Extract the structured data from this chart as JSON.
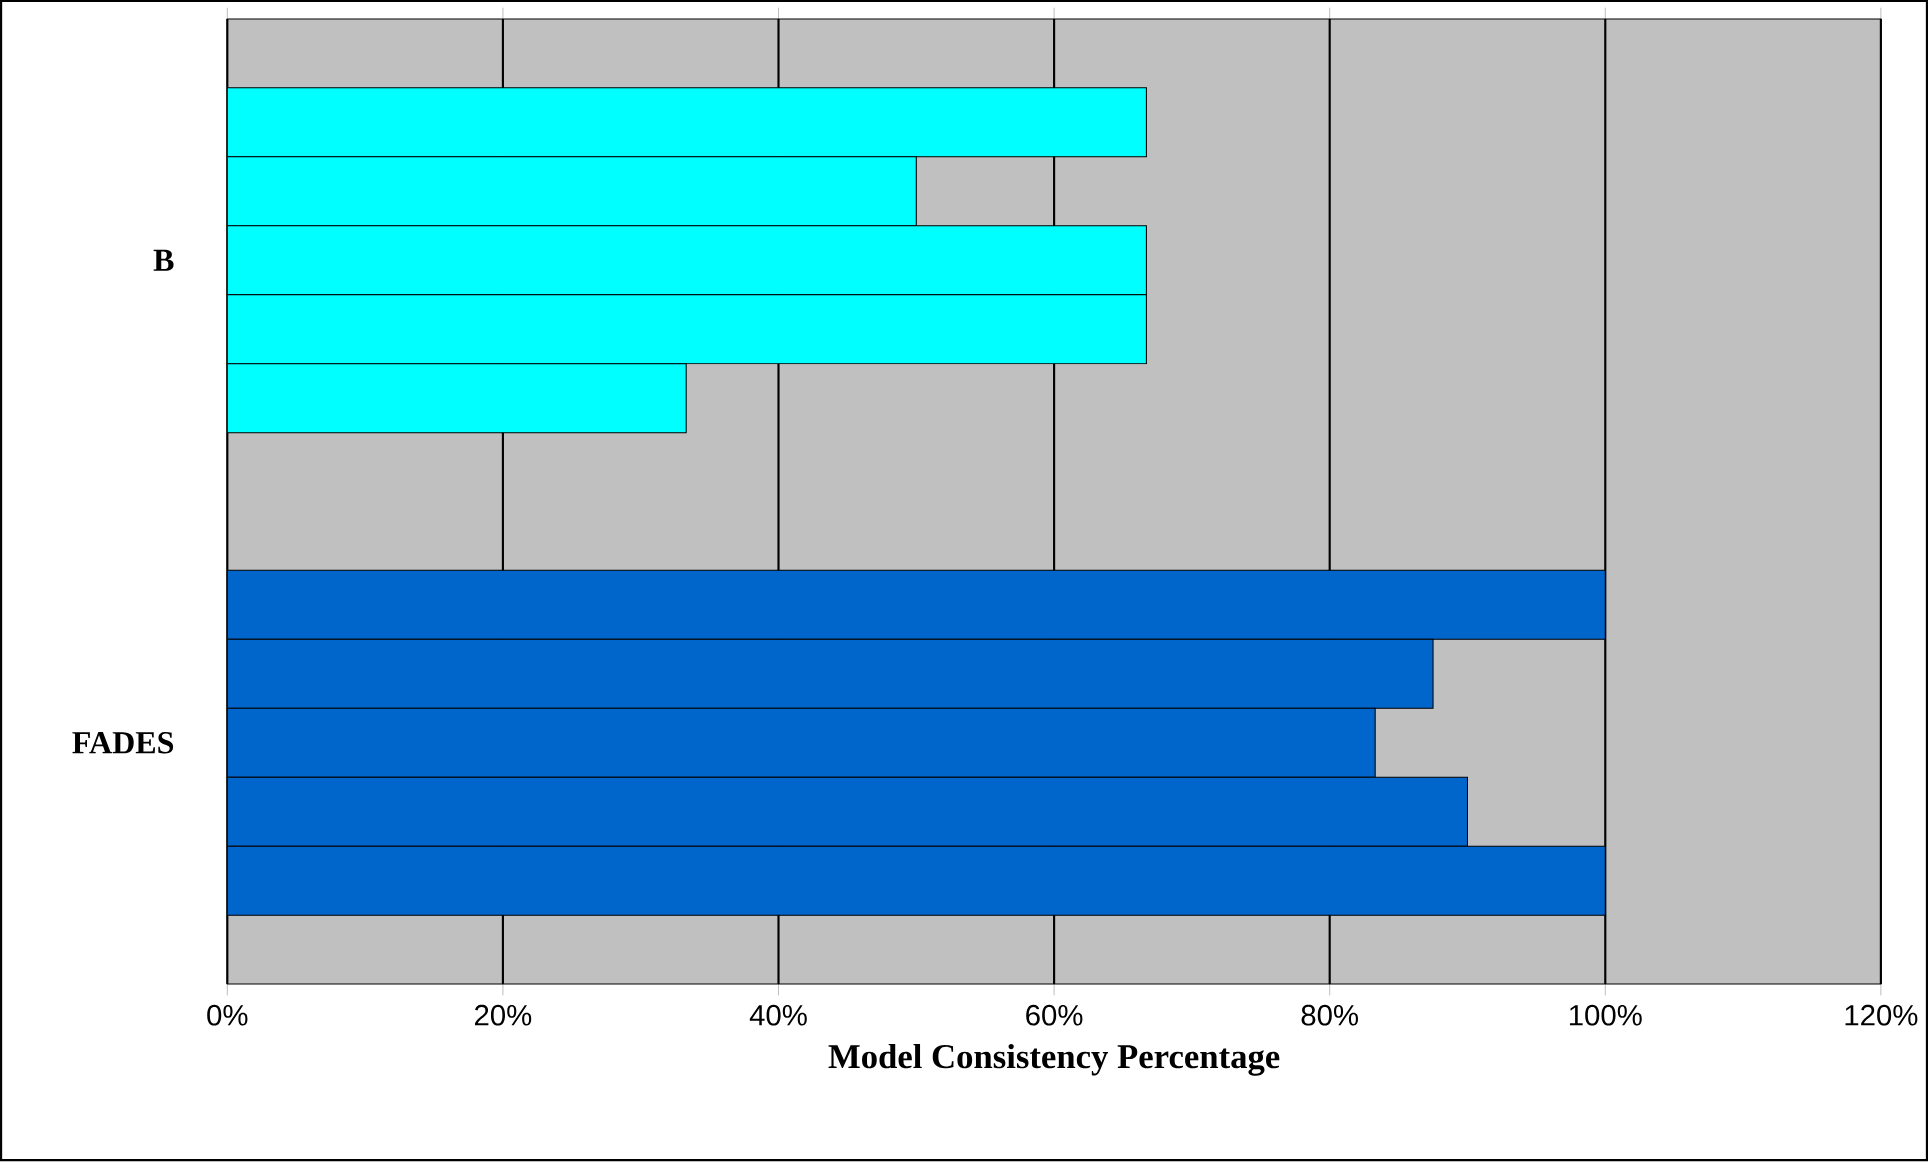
{
  "chart_data": {
    "type": "bar",
    "orientation": "horizontal",
    "categories": [
      "B",
      "FADES"
    ],
    "series": [
      {
        "colors": [
          "#00ffff",
          "#0066cc"
        ],
        "values": [
          66.7,
          100
        ]
      },
      {
        "colors": [
          "#00ffff",
          "#0066cc"
        ],
        "values": [
          50,
          87.5
        ]
      },
      {
        "colors": [
          "#00ffff",
          "#0066cc"
        ],
        "values": [
          66.7,
          83.3
        ]
      },
      {
        "colors": [
          "#00ffff",
          "#0066cc"
        ],
        "values": [
          66.7,
          90
        ]
      },
      {
        "colors": [
          "#00ffff",
          "#0066cc"
        ],
        "values": [
          33.3,
          100
        ]
      }
    ],
    "xlabel": "Model Consistency Percentage",
    "xlim": [
      0,
      120
    ],
    "xticks": [
      {
        "value": 0,
        "label": "0%"
      },
      {
        "value": 20,
        "label": "20%"
      },
      {
        "value": 40,
        "label": "40%"
      },
      {
        "value": 60,
        "label": "60%"
      },
      {
        "value": 80,
        "label": "80%"
      },
      {
        "value": 100,
        "label": "100%"
      },
      {
        "value": 120,
        "label": "120%"
      }
    ],
    "grid": "x"
  }
}
